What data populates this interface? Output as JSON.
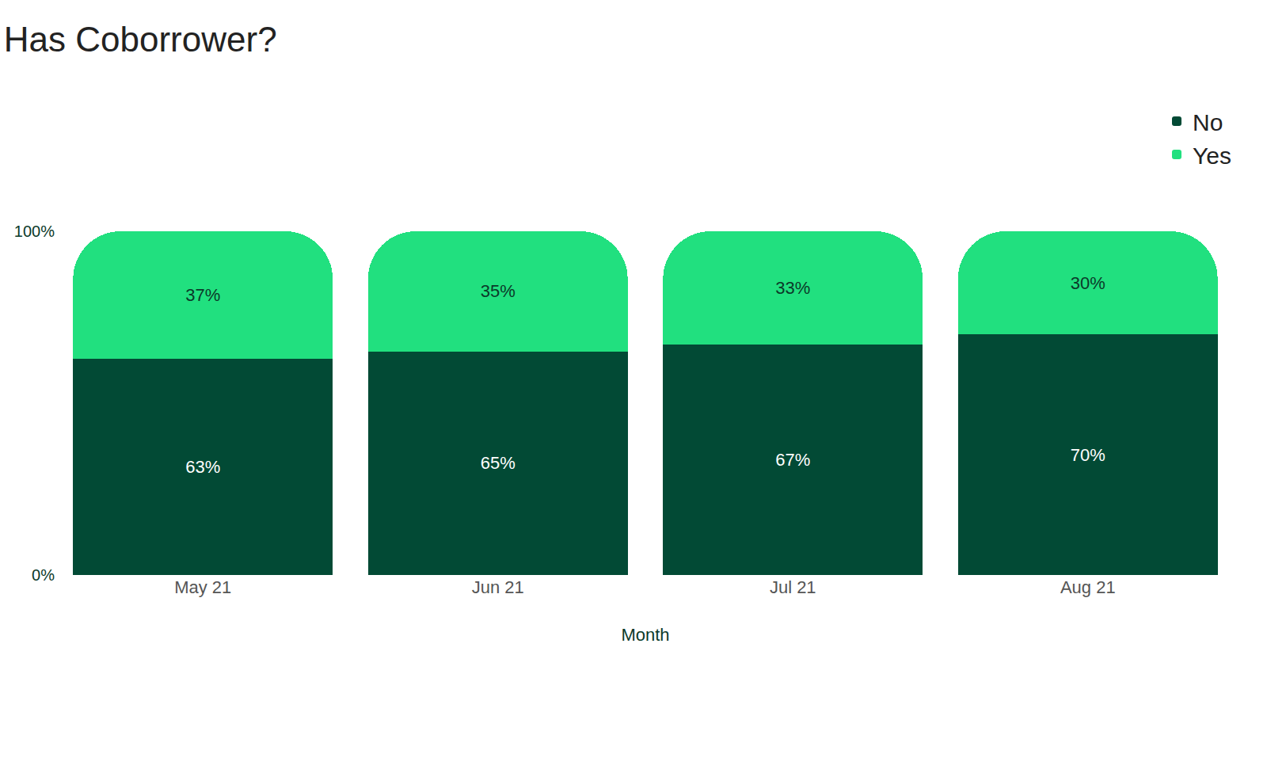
{
  "chart_data": {
    "type": "bar",
    "title": "Has Coborrower?",
    "x_label": "Month",
    "categories": [
      "May 21",
      "Jun 21",
      "Jul 21",
      "Aug 21"
    ],
    "stacked": true,
    "data_labels": true,
    "legend": "top right",
    "grid": true,
    "series": [
      {
        "name": "No",
        "color": "#024a35",
        "values": [
          63,
          65,
          67,
          70
        ],
        "value_labels": [
          "63%",
          "65%",
          "67%",
          "70%"
        ]
      },
      {
        "name": "Yes",
        "color": "#21e07f",
        "values": [
          37,
          35,
          33,
          30
        ],
        "value_labels": [
          "37%",
          "35%",
          "33%",
          "30%"
        ]
      }
    ],
    "ylim": [
      0,
      100
    ],
    "yticks": [
      {
        "value": 0,
        "label": "0%"
      },
      {
        "value": 100,
        "label": "100%"
      }
    ]
  }
}
